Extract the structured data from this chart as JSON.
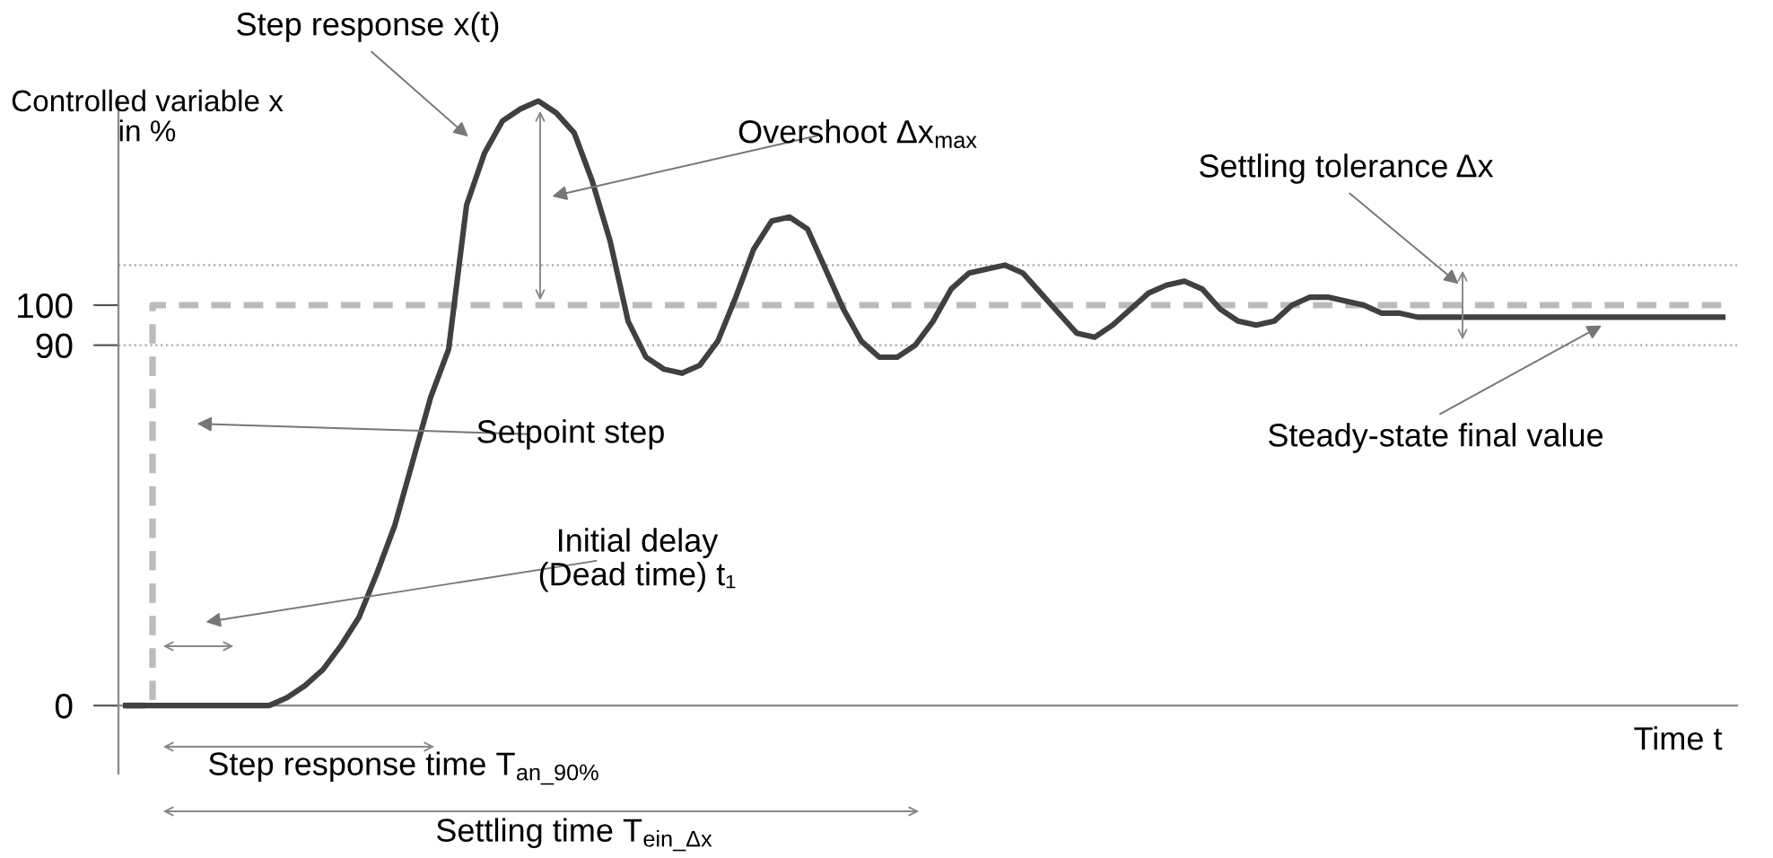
{
  "chart_data": {
    "type": "line",
    "ylabel": "Controlled variable x\nin %",
    "xlabel": "Time t",
    "categories": [
      null,
      null,
      null,
      null,
      null,
      null,
      null,
      null,
      null,
      null,
      null,
      null,
      null,
      null,
      null,
      null,
      null,
      null,
      null,
      null,
      null,
      null,
      null,
      null,
      null,
      null,
      null,
      null,
      null,
      null,
      null,
      null,
      null,
      null,
      null,
      null,
      null,
      null,
      null,
      null,
      null,
      null,
      null,
      null,
      null,
      null,
      null,
      null,
      null,
      null,
      null,
      null,
      null,
      null,
      null,
      null,
      null,
      null,
      null,
      null,
      null,
      null,
      null,
      null,
      null,
      null,
      null,
      null,
      null,
      null,
      null,
      null,
      null,
      null,
      null,
      null,
      null,
      null,
      null,
      null,
      null,
      null,
      null,
      null,
      null,
      null,
      null,
      null,
      null,
      null
    ],
    "series": [
      {
        "type": "step",
        "color": "#bbbbbb",
        "line_style": "dashed",
        "values": [
          0,
          0,
          100,
          100,
          100,
          100,
          100,
          100,
          100,
          100,
          100,
          100,
          100,
          100,
          100,
          100,
          100,
          100,
          100,
          100,
          100,
          100,
          100,
          100,
          100,
          100,
          100,
          100,
          100,
          100,
          100,
          100,
          100,
          100,
          100,
          100,
          100,
          100,
          100,
          100,
          100,
          100,
          100,
          100,
          100,
          100,
          100,
          100,
          100,
          100,
          100,
          100,
          100,
          100,
          100,
          100,
          100,
          100,
          100,
          100,
          100,
          100,
          100,
          100,
          100,
          100,
          100,
          100,
          100,
          100,
          100,
          100,
          100,
          100,
          100,
          100,
          100,
          100,
          100,
          100,
          100,
          100,
          100,
          100,
          100,
          100,
          100,
          100,
          100,
          100
        ]
      },
      {
        "color": "#404040",
        "line_style": "solid",
        "values": [
          0,
          0,
          0,
          0,
          0,
          0,
          0,
          0,
          0,
          2,
          5,
          9,
          15,
          22,
          33,
          45,
          61,
          77,
          89,
          125,
          138,
          146,
          149,
          151,
          148,
          143,
          131,
          116,
          96,
          87,
          84,
          83,
          85,
          91,
          102,
          114,
          121,
          122,
          119,
          109,
          99,
          91,
          87,
          87,
          90,
          96,
          104,
          108,
          109,
          110,
          108,
          103,
          98,
          93,
          92,
          95,
          99,
          103,
          105,
          106,
          104,
          99,
          96,
          95,
          96,
          100,
          102,
          102,
          101,
          100,
          98,
          98,
          97,
          97,
          97,
          97,
          97,
          97,
          97,
          97,
          97,
          97,
          97,
          97,
          97,
          97,
          97,
          97,
          97,
          97
        ]
      }
    ],
    "ylim": [
      -17,
      152
    ],
    "yticks": [
      0,
      90,
      100
    ],
    "ref_lines": [
      {
        "axis": "y",
        "value": 110,
        "color": "#aaaaaa",
        "line_style": "dotted"
      },
      {
        "axis": "y",
        "value": 90,
        "color": "#aaaaaa",
        "line_style": "dotted"
      }
    ],
    "annotations": [
      "Step response x(t)",
      "Overshoot Δx$_{max}$",
      "Settling tolerance Δx",
      "Setpoint step",
      "Steady-state final value",
      "Initial delay\n(Dead time) t₁",
      "Step response time T$_{an_90%}$",
      "Settling time T$_{ein_Δx}$"
    ],
    "legend": false,
    "grid": false
  }
}
